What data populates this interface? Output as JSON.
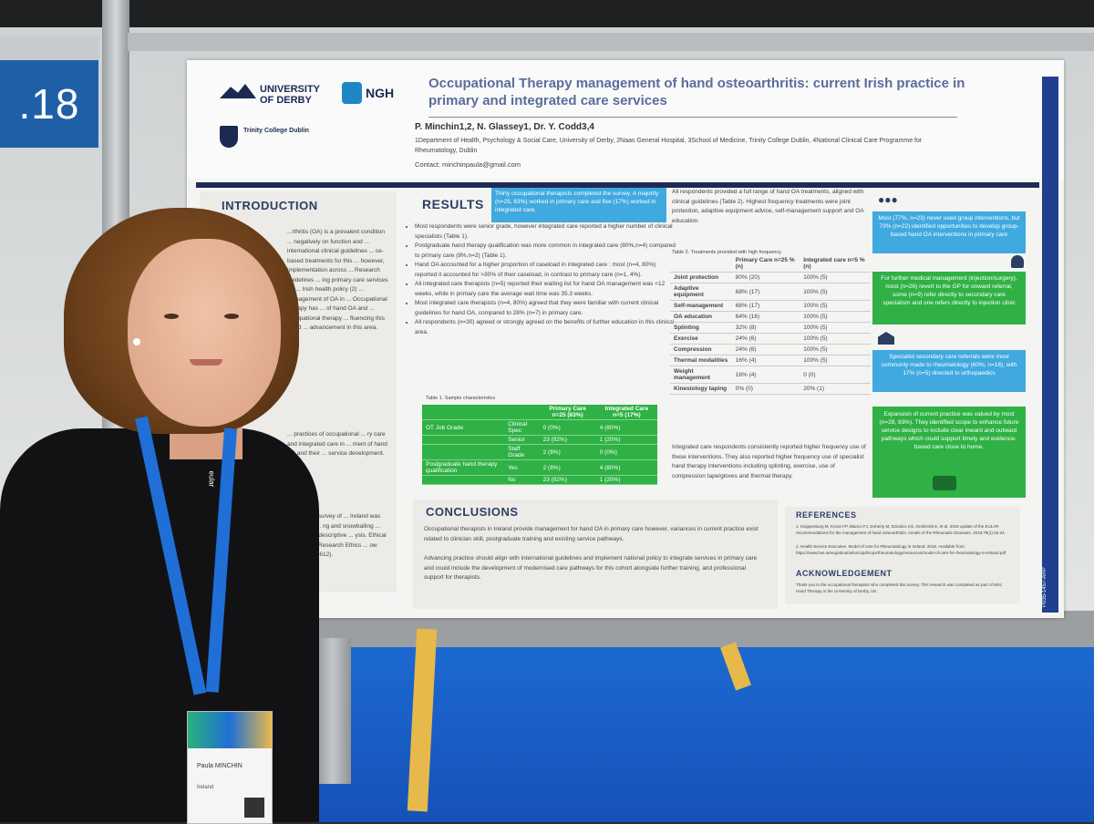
{
  "booth": {
    "number": ".18"
  },
  "poster": {
    "logos": {
      "derby": "UNIVERSITY OF DERBY",
      "ngh": "NGH",
      "trinity": "Trinity College Dublin"
    },
    "title": "Occupational Therapy management of hand osteoarthritis: current Irish practice in primary and integrated care services",
    "authors": "P. Minchin1,2, N. Glassey1, Dr. Y. Codd3,4",
    "affiliations": "1Department of Health, Psychology & Social Care, University of Derby, 2Naas General Hospital, 3School of Medicine, Trinity College Dublin, 4National Clinical Care Programme for Rheumatology, Dublin",
    "contact": "Contact: minchinpaula@gmail.com",
    "introduction": {
      "heading": "INTRODUCTION",
      "text": "...rthritis (OA) is a prevalent condition ... negatively on function and ... international clinical guidelines ... ce-based treatments for this ... however, implementation across ... Research guidelines ... ing primary care services for ... Irish health policy (2) ... management of OA in ... Occupational therapy has ... of hand OA and ... occupational therapy ... fluencing this could ... advancement in this area.",
      "text2": "... practices of occupational ... ry care and integrated care in ... ment of hand OA and their ... service development.",
      "text3": "...onymous survey of ... Ireland was conducted ... ng and snowballing ... lysed using descriptive ... ysis. Ethical approval ... Research Ethics ... ow (ETH2324-3612)."
    },
    "results": {
      "heading": "RESULTS",
      "highlight": "Thirty occupational therapists completed the survey. A majority (n=25, 83%) worked in primary care and five (17%) worked in integrated care.",
      "bullets": [
        "Most respondents were senior grade, however integrated care reported a higher number of clinical specialists (Table 1).",
        "Postgraduate hand therapy qualification was more common in integrated care (80%,n=4) compared to primary care (8%,n=2) (Table 1).",
        "Hand OA accounted for a higher proportion of caseload in integrated care : most (n=4, 80%) reported it accounted for >30% of their caseload, in contrast to primary care (n=1, 4%).",
        "All integrated care therapists (n=5) reported their waiting list for hand OA management was <12 weeks, while in primary care the average wait time was 35.3 weeks.",
        "Most integrated care therapists (n=4, 80%) agreed that they were familiar with current clinical guidelines for hand OA, compared to 28% (n=7) in primary care.",
        "All respondents (n=30) agreed or strongly agreed on the benefits of further education in this clinical area."
      ],
      "table1": {
        "caption": "Table 1. Sample characteristics",
        "head": [
          "",
          "",
          "Primary Care n=25 (83%)",
          "Integrated Care n=5 (17%)"
        ],
        "rows": [
          [
            "OT Job Grade",
            "Clinical Spec",
            "0 (0%)",
            "4 (80%)"
          ],
          [
            "",
            "Senior",
            "23 (92%)",
            "1 (20%)"
          ],
          [
            "",
            "Staff Grade",
            "2 (8%)",
            "0 (0%)"
          ],
          [
            "Postgraduate hand therapy qualification",
            "Yes",
            "2 (8%)",
            "4 (80%)"
          ],
          [
            "",
            "No",
            "23 (92%)",
            "1 (20%)"
          ]
        ]
      },
      "col2_intro": "All respondents provided a full range of hand OA treatments, aligned with clinical guidelines (Table 2). Highest frequency treatments were joint protection, adaptive equipment advice, self-management support and OA education.",
      "table2": {
        "caption": "Table 2. Treatments provided with high frequency",
        "head": [
          "",
          "Primary Care n=25 % (n)",
          "Integrated care n=5 % (n)"
        ],
        "rows": [
          [
            "Joint protection",
            "80% (20)",
            "100% (5)"
          ],
          [
            "Adaptive equipment",
            "68% (17)",
            "100% (5)"
          ],
          [
            "Self-management",
            "68% (17)",
            "100% (5)"
          ],
          [
            "OA education",
            "64% (16)",
            "100% (5)"
          ],
          [
            "Splinting",
            "32% (8)",
            "100% (5)"
          ],
          [
            "Exercise",
            "24% (6)",
            "100% (5)"
          ],
          [
            "Compression",
            "24% (6)",
            "100% (5)"
          ],
          [
            "Thermal modalities",
            "16% (4)",
            "100% (5)"
          ],
          [
            "Weight management",
            "16% (4)",
            "0 (0)"
          ],
          [
            "Kinesiology taping",
            "0% (0)",
            "20% (1)"
          ]
        ]
      },
      "col2_outro": "Integrated care respondents consistently reported higher frequency use of these interventions. They also reported higher frequency use of specialist hand therapy interventions including splinting, exercise, use of compression tape/gloves and thermal therapy."
    },
    "side_boxes": [
      "Most (77%, n=23) never used group interventions, but 73% (n=22) identified opportunities to develop group-based hand OA interventions in primary care",
      "For further medical management (injection/surgery), most (n=26) revert to the GP for onward referral, some (n=9) refer directly to secondary care specialism and one refers directly to injection clinic",
      "Specialist secondary care referrals were most commonly made to rheumatology (60%, n=18), with 17% (n=5) directed to orthopaedics",
      "Expansion of current practice was valued by most (n=28, 93%). They identified scope to enhance future service designs to include clear inward and outward pathways which could support timely and evidence-based care close to home."
    ],
    "conclusions": {
      "heading": "CONCLUSIONS",
      "p1": "Occupational therapists in Ireland provide management for hand OA in primary care however, variances in current practice exist related to clinician skill, postgraduate training and existing service pathways.",
      "p2": "Advancing practice should align with international guidelines and implement national policy to integrate services in primary care and could include the development of modernised care pathways for this cohort alongside further training, and professional support for therapists."
    },
    "references": {
      "heading": "REFERENCES",
      "r1": "1. Kloppenburg M, Kroon FP, Blanco FJ, Doherty M, Dziedzic KS, Greibrokk E, et al. 2018 update of the EULAR recommendations for the management of hand osteoarthritis. Annals of the Rheumatic Diseases. 2019;78(1):16-24.",
      "r2": "2. Health Service Executive. Model of care for Rheumatology in Ireland. 2018. Available from: https://www.hse.ie/eng/about/who/cspd/ncps/rheumatology/resources/model-of-care-for-rheumatology-in-ireland.pdf"
    },
    "acknowledgement": {
      "heading": "ACKNOWLEDGEMENT",
      "text": "Thank you to the occupational therapists who completed this survey. This research was completed as part of MSc Hand Therapy in the University of Derby, UK."
    },
    "strip_code": "P035-1457-ARP"
  },
  "badge": {
    "name": "Paula MINCHIN",
    "country": "Ireland"
  },
  "lanyard": {
    "text": "eular"
  }
}
